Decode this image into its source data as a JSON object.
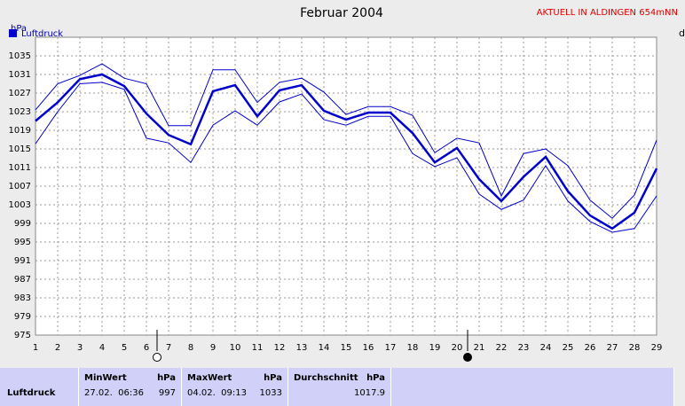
{
  "chart_data": {
    "type": "line",
    "title": "Februar 2004",
    "subtitle": "AKTUELL IN ALDINGEN 654mNN",
    "y_label": "hPa",
    "corner_text": "d",
    "x": [
      1,
      2,
      3,
      4,
      5,
      6,
      7,
      8,
      9,
      10,
      11,
      12,
      13,
      14,
      15,
      16,
      17,
      18,
      19,
      20,
      21,
      22,
      23,
      24,
      25,
      26,
      27,
      28,
      29
    ],
    "xlim": [
      1,
      29
    ],
    "xticks": [
      1,
      2,
      3,
      4,
      5,
      6,
      7,
      8,
      9,
      10,
      11,
      12,
      13,
      14,
      15,
      16,
      17,
      18,
      19,
      20,
      21,
      22,
      23,
      24,
      25,
      26,
      27,
      28,
      29
    ],
    "ylim": [
      975,
      1039
    ],
    "yticks": [
      975,
      979,
      983,
      987,
      991,
      995,
      999,
      1003,
      1007,
      1011,
      1015,
      1019,
      1023,
      1027,
      1031,
      1035
    ],
    "grid": true,
    "series": [
      {
        "name": "Luftdruck",
        "color": "#0000cc",
        "values": [
          1021,
          1025,
          1030,
          1031,
          1028.5,
          1022.6,
          1018,
          1016,
          1027.4,
          1028.7,
          1022,
          1027.6,
          1028.7,
          1023.2,
          1021.3,
          1022.8,
          1022.8,
          1018.4,
          1012.1,
          1015.2,
          1008.5,
          1003.8,
          1009,
          1013.3,
          1005.9,
          1000.7,
          997.9,
          1001.3,
          1010.8
        ]
      },
      {
        "color": "#0000cc",
        "values": [
          1023.4,
          1029,
          1030.8,
          1033.3,
          1030.2,
          1029,
          1020,
          1020,
          1032,
          1032,
          1025,
          1029.3,
          1030.2,
          1027.2,
          1022.4,
          1024.1,
          1024.1,
          1022.2,
          1014.2,
          1017.3,
          1016.3,
          1004.9,
          1014,
          1015,
          1011.4,
          1004,
          1000.1,
          1005.1,
          1016.9
        ]
      },
      {
        "color": "#0000cc",
        "values": [
          1016.1,
          1023,
          1029,
          1029.3,
          1027.8,
          1017.3,
          1016.3,
          1012.1,
          1020.1,
          1023.2,
          1020.1,
          1025.1,
          1026.8,
          1021.3,
          1020.1,
          1022,
          1022,
          1014,
          1011.2,
          1013.1,
          1005.3,
          1002,
          1004,
          1011.4,
          1003.8,
          999.4,
          997.1,
          997.9,
          1004.9
        ]
      }
    ]
  },
  "stats_table": {
    "headers": [
      "MinWert",
      "hPa",
      "MaxWert",
      "hPa",
      "Durchschnitt",
      "hPa"
    ],
    "rows": [
      [
        "Luftdruck",
        "27.02.  06:36",
        997,
        "04.02.  09:13",
        1033,
        1017.9
      ]
    ]
  }
}
